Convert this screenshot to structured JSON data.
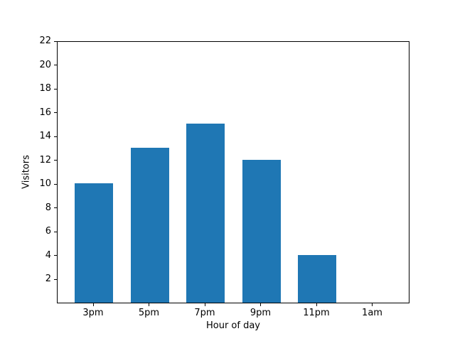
{
  "chart_data": {
    "type": "bar",
    "title": "",
    "categories": [
      "3pm",
      "5pm",
      "7pm",
      "9pm",
      "11pm",
      "1am"
    ],
    "values": [
      10,
      13,
      15,
      12,
      4,
      0
    ],
    "xlabel": "Hour of day",
    "ylabel": "Visitors",
    "ylim": [
      0,
      22
    ],
    "yticks": [
      2,
      4,
      6,
      8,
      10,
      12,
      14,
      16,
      18,
      20,
      22
    ],
    "bar_color": "#1f77b4",
    "frame_color": "#000000",
    "background_color": "#ffffff",
    "grid": false,
    "legend": null
  }
}
